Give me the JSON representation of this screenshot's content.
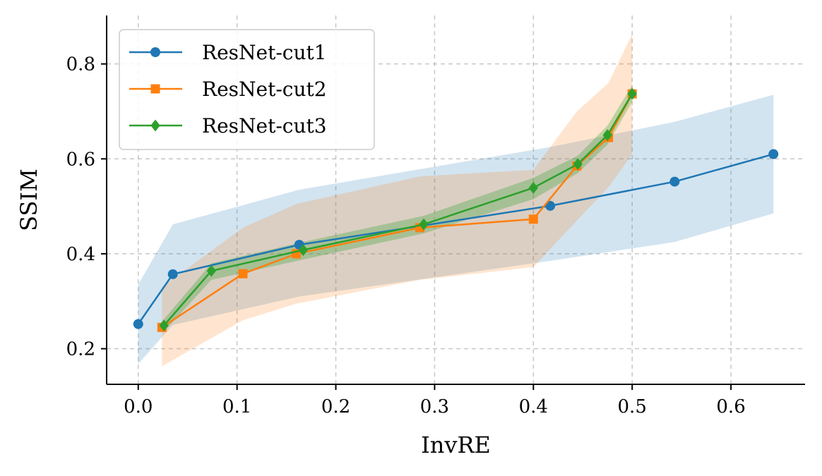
{
  "chart_data": {
    "type": "line",
    "title": "",
    "xlabel": "InvRE",
    "ylabel": "SSIM",
    "xlim": [
      -0.032,
      0.675
    ],
    "ylim": [
      0.125,
      0.902
    ],
    "xticks": [
      0.0,
      0.1,
      0.2,
      0.3,
      0.4,
      0.5,
      0.6
    ],
    "xtick_labels": [
      "0.0",
      "0.1",
      "0.2",
      "0.3",
      "0.4",
      "0.5",
      "0.6"
    ],
    "yticks": [
      0.2,
      0.4,
      0.6,
      0.8
    ],
    "ytick_labels": [
      "0.2",
      "0.4",
      "0.6",
      "0.8"
    ],
    "grid": true,
    "legend_position": "top-left",
    "series": [
      {
        "name": "ResNet-cut1",
        "color": "#1f77b4",
        "marker": "circle",
        "x": [
          0.0,
          0.035,
          0.163,
          0.417,
          0.543,
          0.643
        ],
        "y": [
          0.252,
          0.357,
          0.419,
          0.501,
          0.552,
          0.61
        ],
        "band_lower": [
          0.168,
          0.25,
          0.31,
          0.385,
          0.425,
          0.485
        ],
        "band_upper": [
          0.335,
          0.462,
          0.535,
          0.625,
          0.678,
          0.735
        ]
      },
      {
        "name": "ResNet-cut2",
        "color": "#ff7f0e",
        "marker": "square",
        "x": [
          0.024,
          0.106,
          0.16,
          0.285,
          0.4,
          0.444,
          0.476,
          0.5
        ],
        "y": [
          0.245,
          0.358,
          0.4,
          0.455,
          0.473,
          0.585,
          0.645,
          0.737
        ],
        "band_lower": [
          0.163,
          0.26,
          0.295,
          0.345,
          0.372,
          0.47,
          0.54,
          0.61
        ],
        "band_upper": [
          0.33,
          0.455,
          0.505,
          0.563,
          0.577,
          0.7,
          0.76,
          0.863
        ]
      },
      {
        "name": "ResNet-cut3",
        "color": "#2ca02c",
        "marker": "diamond",
        "x": [
          0.026,
          0.074,
          0.167,
          0.289,
          0.4,
          0.445,
          0.475,
          0.5
        ],
        "y": [
          0.249,
          0.364,
          0.408,
          0.462,
          0.539,
          0.589,
          0.65,
          0.737
        ],
        "band_lower": [
          0.236,
          0.345,
          0.388,
          0.443,
          0.515,
          0.57,
          0.63,
          0.72
        ],
        "band_upper": [
          0.262,
          0.38,
          0.425,
          0.48,
          0.56,
          0.607,
          0.67,
          0.755
        ]
      }
    ]
  }
}
